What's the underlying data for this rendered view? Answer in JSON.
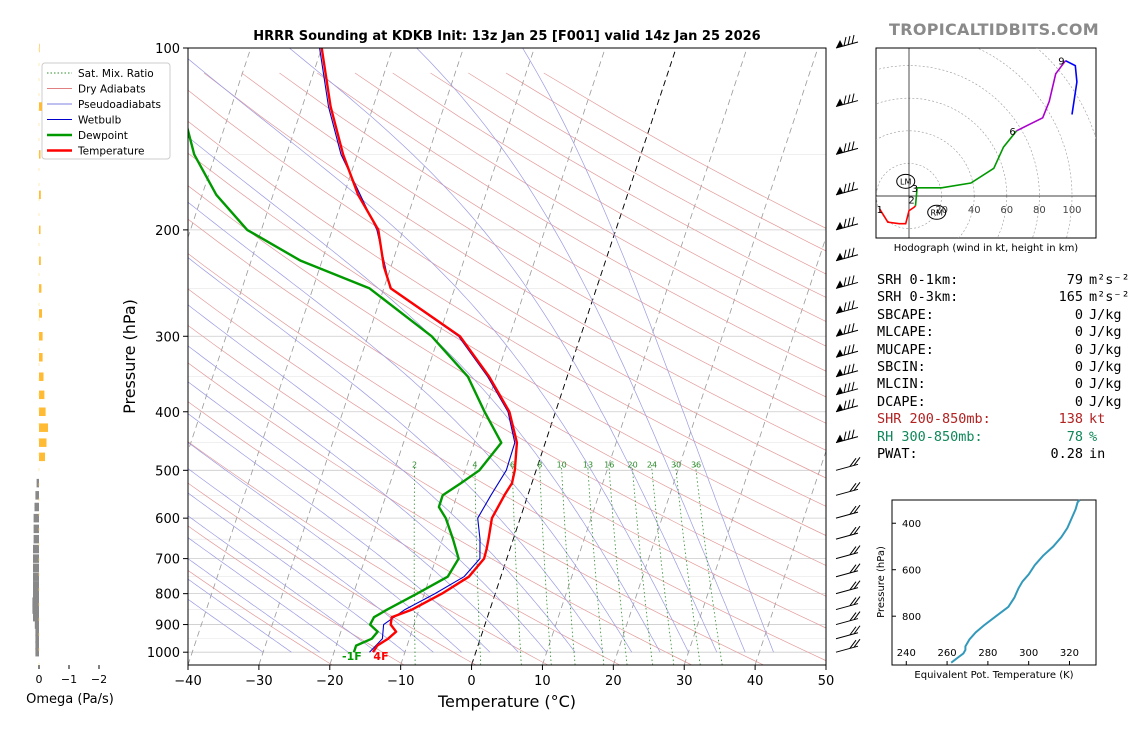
{
  "title": "HRRR Sounding at KDKB Init: 13z Jan 25 [F001] valid 14z Jan 25 2026",
  "brand": "TROPICALTIDBITS.COM",
  "skewt": {
    "xlabel": "Temperature (°C)",
    "ylabel": "Pressure (hPa)",
    "xticks": [
      -40,
      -30,
      -20,
      -10,
      0,
      10,
      20,
      30,
      40,
      50
    ],
    "xtick_labels": [
      "−40",
      "−30",
      "−20",
      "−10",
      "0",
      "10",
      "20",
      "30",
      "40",
      "50"
    ],
    "xlim": [
      -40,
      50
    ],
    "ylim": [
      1050,
      100
    ],
    "yticks": [
      100,
      200,
      300,
      400,
      500,
      600,
      700,
      800,
      900,
      1000
    ],
    "yscale": "log",
    "grid": true,
    "legend": {
      "position": "top-left",
      "entries": [
        {
          "label": "Sat. Mix. Ratio",
          "color": "#2e8b2e",
          "style": "dotted"
        },
        {
          "label": "Dry Adiabats",
          "color": "#e08080",
          "style": "solid"
        },
        {
          "label": "Pseudoadiabats",
          "color": "#8080e0",
          "style": "solid"
        },
        {
          "label": "Wetbulb",
          "color": "#0000cc",
          "style": "solid"
        },
        {
          "label": "Dewpoint",
          "color": "#009900",
          "style": "thick"
        },
        {
          "label": "Temperature",
          "color": "#ff0000",
          "style": "thick"
        }
      ]
    },
    "mixing_ratio_labels": [
      "2",
      "4",
      "6",
      "8",
      "10",
      "13",
      "16",
      "20",
      "24",
      "30",
      "36"
    ],
    "surface_labels": {
      "dewpoint": "-1F",
      "temperature": "4F"
    },
    "temperature": {
      "p": [
        1000,
        975,
        950,
        925,
        900,
        875,
        850,
        800,
        750,
        700,
        675,
        650,
        600,
        550,
        525,
        500,
        450,
        400,
        350,
        300,
        250,
        230,
        200,
        175,
        150,
        125,
        100
      ],
      "t": [
        -14.5,
        -14.2,
        -13,
        -12.2,
        -13.3,
        -13.5,
        -11,
        -7.5,
        -4.5,
        -3.2,
        -3.3,
        -3.5,
        -4,
        -3.3,
        -2.8,
        -3,
        -4,
        -6.5,
        -11,
        -17,
        -29,
        -31,
        -33.5,
        -38,
        -42,
        -46,
        -50
      ]
    },
    "dewpoint": {
      "p": [
        1000,
        975,
        950,
        925,
        900,
        875,
        850,
        800,
        750,
        700,
        650,
        600,
        575,
        550,
        525,
        500,
        450,
        400,
        350,
        300,
        250,
        225,
        200,
        175,
        150,
        125,
        100
      ],
      "td": [
        -17.2,
        -17.2,
        -15.3,
        -14.8,
        -16.2,
        -16,
        -14.5,
        -11,
        -7.5,
        -6.8,
        -8.5,
        -10.5,
        -12,
        -12,
        -10,
        -8,
        -6.2,
        -10,
        -14,
        -21,
        -32,
        -43,
        -52,
        -58,
        -63,
        -67,
        -69
      ]
    },
    "wetbulb": {
      "p": [
        1000,
        950,
        900,
        850,
        800,
        750,
        700,
        650,
        600,
        550,
        500,
        450,
        400,
        350,
        300,
        250,
        200,
        150,
        125,
        100
      ],
      "tw": [
        -15,
        -13.8,
        -14.3,
        -12,
        -8.5,
        -5.2,
        -3.8,
        -4.7,
        -6,
        -5.2,
        -4.2,
        -4.3,
        -6.7,
        -11.2,
        -17.2,
        -29.1,
        -33.7,
        -42.3,
        -46.3,
        -50.3
      ]
    },
    "wind_barbs_p": [
      100,
      125,
      150,
      175,
      200,
      225,
      250,
      275,
      300,
      325,
      350,
      375,
      400,
      450,
      500,
      550,
      600,
      650,
      700,
      750,
      800,
      850,
      900,
      950,
      1000
    ]
  },
  "omega": {
    "xlabel": "Omega (Pa/s)",
    "xtick_labels": [
      "0",
      "−1",
      "−2"
    ],
    "xlim": [
      0,
      -2
    ],
    "p": [
      100,
      125,
      150,
      175,
      200,
      225,
      250,
      275,
      300,
      325,
      350,
      375,
      400,
      425,
      450,
      475,
      500,
      525,
      550,
      575,
      600,
      625,
      650,
      675,
      700,
      725,
      750,
      775,
      800,
      825,
      850,
      875,
      900,
      925,
      950,
      975,
      1000
    ],
    "values": [
      -0.02,
      -0.1,
      -0.05,
      -0.06,
      -0.05,
      -0.06,
      -0.08,
      -0.1,
      -0.12,
      -0.12,
      -0.15,
      -0.18,
      -0.22,
      -0.3,
      -0.25,
      -0.2,
      0,
      0.08,
      0.12,
      0.15,
      0.18,
      0.18,
      0.18,
      0.2,
      0.2,
      0.2,
      0.2,
      0.2,
      0.2,
      0.22,
      0.22,
      0.2,
      0.14,
      0.12,
      0.12,
      0.12,
      0.12
    ]
  },
  "hodograph": {
    "xlabel": "Hodograph (wind in kt, height in km)",
    "ring_labels": [
      "20",
      "40",
      "60",
      "80",
      "100"
    ],
    "height_labels": [
      "1",
      "2",
      "3",
      "6",
      "9"
    ],
    "markers": [
      "LM",
      "RM"
    ],
    "segments": [
      {
        "color": "#ff0000",
        "points": [
          [
            -18,
            -8
          ],
          [
            -13,
            -16
          ],
          [
            -6,
            -17
          ],
          [
            -2,
            -17
          ],
          [
            0,
            -9
          ],
          [
            3,
            -7
          ],
          [
            4,
            -6
          ]
        ]
      },
      {
        "color": "#009900",
        "points": [
          [
            4,
            -6
          ],
          [
            5,
            5
          ],
          [
            20,
            5
          ],
          [
            38,
            8
          ],
          [
            52,
            17
          ],
          [
            58,
            30
          ],
          [
            66,
            40
          ]
        ]
      },
      {
        "color": "#aa00cc",
        "points": [
          [
            66,
            40
          ],
          [
            74,
            44
          ],
          [
            82,
            48
          ],
          [
            86,
            58
          ],
          [
            90,
            75
          ],
          [
            96,
            83
          ]
        ]
      },
      {
        "color": "#0000ff",
        "points": [
          [
            96,
            83
          ],
          [
            102,
            80
          ],
          [
            103,
            70
          ],
          [
            100,
            50
          ]
        ]
      }
    ]
  },
  "stats": [
    {
      "label": "SRH 0-1km:",
      "value": "79",
      "unit": "m²s⁻²",
      "color": "#000000"
    },
    {
      "label": "SRH 0-3km:",
      "value": "165",
      "unit": "m²s⁻²",
      "color": "#000000"
    },
    {
      "label": "SBCAPE:",
      "value": "0",
      "unit": "J/kg",
      "color": "#000000"
    },
    {
      "label": "MLCAPE:",
      "value": "0",
      "unit": "J/kg",
      "color": "#000000"
    },
    {
      "label": "MUCAPE:",
      "value": "0",
      "unit": "J/kg",
      "color": "#000000"
    },
    {
      "label": "SBCIN:",
      "value": "0",
      "unit": "J/kg",
      "color": "#000000"
    },
    {
      "label": "MLCIN:",
      "value": "0",
      "unit": "J/kg",
      "color": "#000000"
    },
    {
      "label": "DCAPE:",
      "value": "0",
      "unit": "J/kg",
      "color": "#000000"
    },
    {
      "label": "SHR 200-850mb:",
      "value": "138",
      "unit": "kt",
      "color": "#b22222"
    },
    {
      "label": "RH 300-850mb:",
      "value": "78",
      "unit": "%",
      "color": "#11885a"
    },
    {
      "label": "PWAT:",
      "value": "0.28",
      "unit": "in",
      "color": "#000000"
    }
  ],
  "theta_e": {
    "xlabel": "Equivalent Pot. Temperature (K)",
    "ylabel": "Pressure (hPa)",
    "xticks": [
      240,
      260,
      280,
      300,
      320
    ],
    "yticks": [
      400,
      600,
      800
    ],
    "xlim": [
      233,
      333
    ],
    "ylim": [
      1010,
      300
    ],
    "color": "#3399bb",
    "p": [
      1000,
      980,
      960,
      945,
      930,
      900,
      870,
      840,
      800,
      760,
      720,
      700,
      680,
      650,
      620,
      580,
      540,
      500,
      460,
      420,
      380,
      340,
      310,
      300
    ],
    "theta": [
      262,
      265,
      268,
      269,
      269,
      271,
      274,
      278,
      284,
      290,
      293,
      294,
      295,
      297,
      300,
      303,
      307,
      312,
      316,
      319,
      321,
      323,
      324,
      325
    ]
  }
}
